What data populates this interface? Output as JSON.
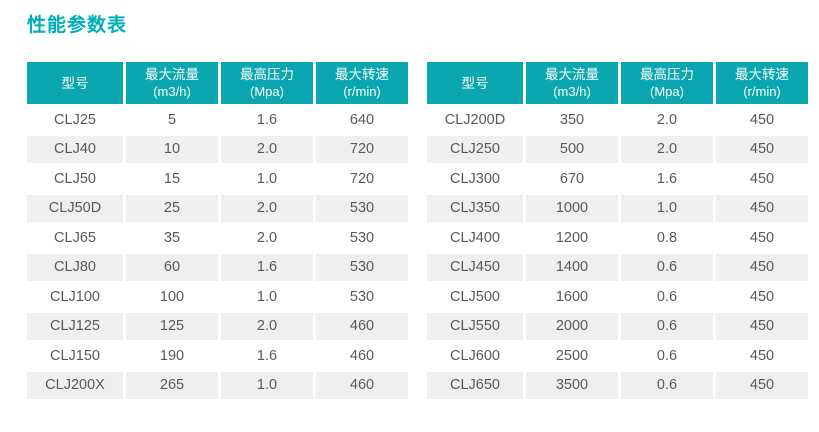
{
  "page": {
    "title": "性能参数表",
    "accent_color": "#0aa7b0",
    "title_color": "#00afba",
    "stripe_color": "#efefef",
    "body_text_color": "#58595b",
    "header_text_color": "#ffffff"
  },
  "columns": [
    {
      "label": "型号",
      "sub": ""
    },
    {
      "label": "最大流量",
      "sub": "(m3/h)"
    },
    {
      "label": "最高压力",
      "sub": "(Mpa)"
    },
    {
      "label": "最大转速",
      "sub": "(r/min)"
    }
  ],
  "tables": [
    {
      "rows": [
        {
          "model": "CLJ25",
          "flow": "5",
          "pressure": "1.6",
          "speed": "640"
        },
        {
          "model": "CLJ40",
          "flow": "10",
          "pressure": "2.0",
          "speed": "720"
        },
        {
          "model": "CLJ50",
          "flow": "15",
          "pressure": "1.0",
          "speed": "720"
        },
        {
          "model": "CLJ50D",
          "flow": "25",
          "pressure": "2.0",
          "speed": "530"
        },
        {
          "model": "CLJ65",
          "flow": "35",
          "pressure": "2.0",
          "speed": "530"
        },
        {
          "model": "CLJ80",
          "flow": "60",
          "pressure": "1.6",
          "speed": "530"
        },
        {
          "model": "CLJ100",
          "flow": "100",
          "pressure": "1.0",
          "speed": "530"
        },
        {
          "model": "CLJ125",
          "flow": "125",
          "pressure": "2.0",
          "speed": "460"
        },
        {
          "model": "CLJ150",
          "flow": "190",
          "pressure": "1.6",
          "speed": "460"
        },
        {
          "model": "CLJ200X",
          "flow": "265",
          "pressure": "1.0",
          "speed": "460"
        }
      ]
    },
    {
      "rows": [
        {
          "model": "CLJ200D",
          "flow": "350",
          "pressure": "2.0",
          "speed": "450"
        },
        {
          "model": "CLJ250",
          "flow": "500",
          "pressure": "2.0",
          "speed": "450"
        },
        {
          "model": "CLJ300",
          "flow": "670",
          "pressure": "1.6",
          "speed": "450"
        },
        {
          "model": "CLJ350",
          "flow": "1000",
          "pressure": "1.0",
          "speed": "450"
        },
        {
          "model": "CLJ400",
          "flow": "1200",
          "pressure": "0.8",
          "speed": "450"
        },
        {
          "model": "CLJ450",
          "flow": "1400",
          "pressure": "0.6",
          "speed": "450"
        },
        {
          "model": "CLJ500",
          "flow": "1600",
          "pressure": "0.6",
          "speed": "450"
        },
        {
          "model": "CLJ550",
          "flow": "2000",
          "pressure": "0.6",
          "speed": "450"
        },
        {
          "model": "CLJ600",
          "flow": "2500",
          "pressure": "0.6",
          "speed": "450"
        },
        {
          "model": "CLJ650",
          "flow": "3500",
          "pressure": "0.6",
          "speed": "450"
        }
      ]
    }
  ]
}
